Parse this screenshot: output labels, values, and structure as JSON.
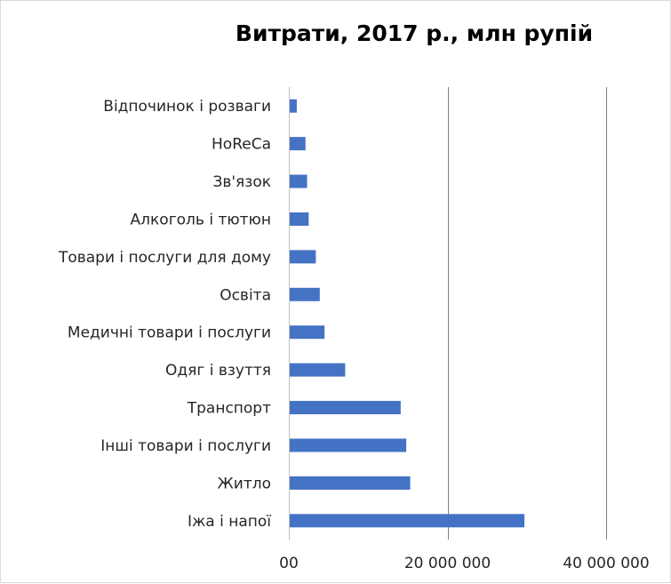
{
  "chart_data": {
    "type": "bar",
    "orientation": "horizontal",
    "title": "Витрати, 2017 р., млн рупій",
    "categories": [
      "Іжа і напої",
      "Житло",
      "Інші товари і послуги",
      "Транспорт",
      "Одяг і взуття",
      "Медичні товари і послуги",
      "Освіта",
      "Товари і послуги для дому",
      "Алкоголь і тютюн",
      "Зв'язок",
      "HoReCa",
      "Відпочинок і розваги"
    ],
    "values": [
      29700000,
      15300000,
      14800000,
      14100000,
      7100000,
      4500000,
      3900000,
      3400000,
      2500000,
      2300000,
      2100000,
      1000000
    ],
    "xlim": [
      0,
      40000000
    ],
    "xticks": [
      0,
      20000000,
      40000000
    ],
    "xtick_labels": [
      "00",
      "20 000 000",
      "40 000 000"
    ],
    "grid": "vertical",
    "bar_color": "#4472c4"
  }
}
